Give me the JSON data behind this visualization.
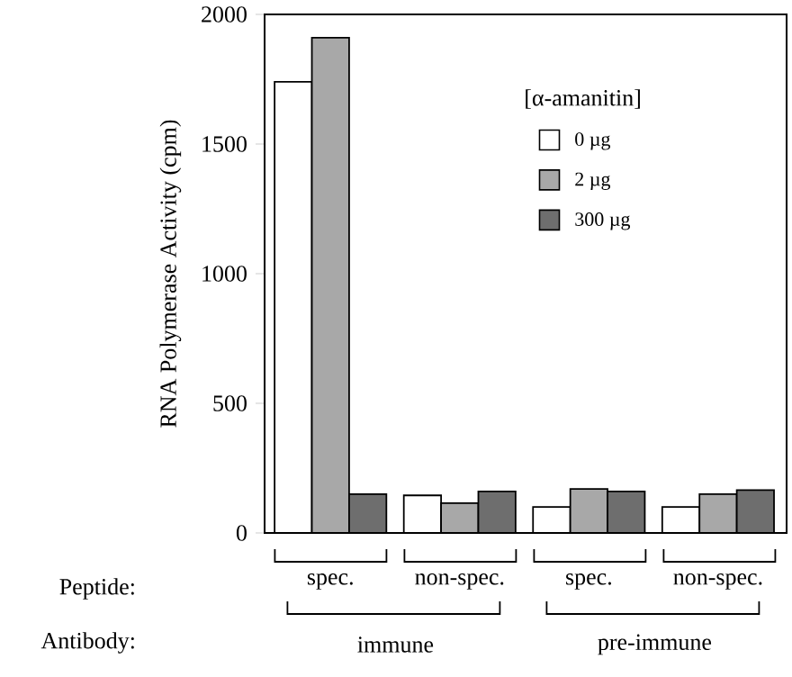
{
  "chart_data": {
    "type": "bar",
    "ylabel": "RNA Polymerase Activity (cpm)",
    "legend_title": "[α-amanitin]",
    "legend": "top right",
    "categories": [
      "spec.",
      "non-spec.",
      "spec.",
      "non-spec."
    ],
    "series": [
      {
        "name": "0 µg",
        "color": "#ffffff",
        "values": [
          1740,
          145,
          100,
          100
        ]
      },
      {
        "name": "2 µg",
        "color": "#a8a8a8",
        "values": [
          1910,
          115,
          170,
          150
        ]
      },
      {
        "name": "300 µg",
        "color": "#6e6e6e",
        "values": [
          150,
          160,
          160,
          165
        ]
      }
    ],
    "ylim": [
      0,
      2000
    ],
    "yticks": [
      0,
      500,
      1000,
      1500,
      2000
    ],
    "grid": false,
    "annotations": [
      "Peptide:",
      "Antibody:",
      "immune",
      "pre-immune"
    ]
  }
}
